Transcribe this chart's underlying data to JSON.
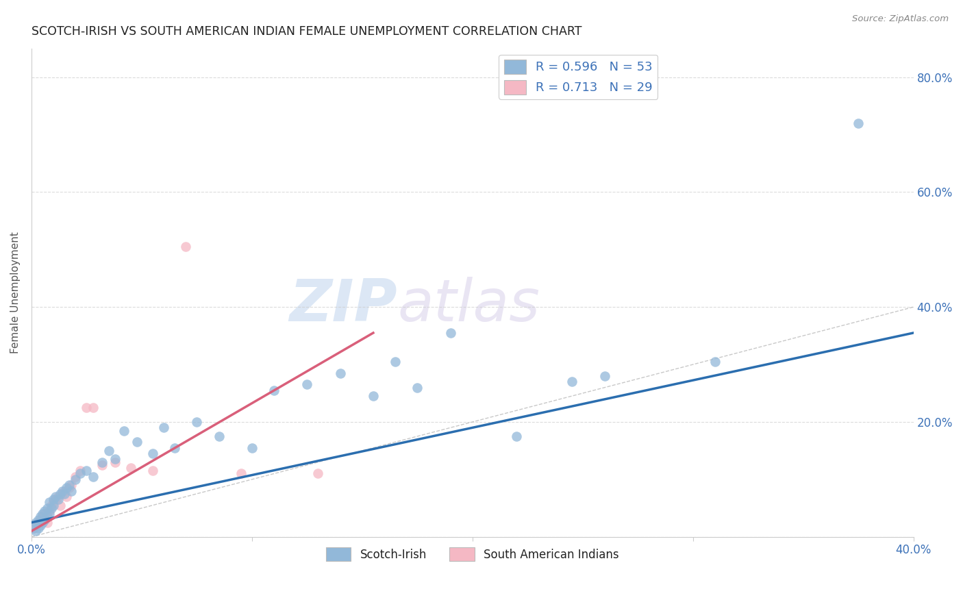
{
  "title": "SCOTCH-IRISH VS SOUTH AMERICAN INDIAN FEMALE UNEMPLOYMENT CORRELATION CHART",
  "source": "Source: ZipAtlas.com",
  "ylabel": "Female Unemployment",
  "xlim": [
    0.0,
    0.4
  ],
  "ylim": [
    0.0,
    0.85
  ],
  "x_ticks": [
    0.0,
    0.1,
    0.2,
    0.3,
    0.4
  ],
  "y_ticks": [
    0.0,
    0.2,
    0.4,
    0.6,
    0.8
  ],
  "x_tick_labels": [
    "0.0%",
    "",
    "",
    "",
    "40.0%"
  ],
  "y_tick_labels_right": [
    "",
    "20.0%",
    "40.0%",
    "60.0%",
    "80.0%"
  ],
  "legend_bottom_label1": "Scotch-Irish",
  "legend_bottom_label2": "South American Indians",
  "scotch_irish_color": "#92b8d9",
  "south_american_color": "#f5b8c4",
  "scotch_irish_line_color": "#2b6eaf",
  "south_american_line_color": "#d95f7a",
  "diagonal_line_color": "#bbbbbb",
  "R_scotch": 0.596,
  "N_scotch": 53,
  "R_south": 0.713,
  "N_south": 29,
  "scotch_x": [
    0.001,
    0.002,
    0.002,
    0.003,
    0.003,
    0.004,
    0.004,
    0.005,
    0.005,
    0.006,
    0.006,
    0.007,
    0.007,
    0.008,
    0.008,
    0.009,
    0.01,
    0.01,
    0.011,
    0.012,
    0.013,
    0.014,
    0.015,
    0.016,
    0.017,
    0.018,
    0.02,
    0.022,
    0.025,
    0.028,
    0.032,
    0.035,
    0.038,
    0.042,
    0.048,
    0.055,
    0.06,
    0.065,
    0.075,
    0.085,
    0.1,
    0.11,
    0.125,
    0.14,
    0.155,
    0.165,
    0.175,
    0.19,
    0.22,
    0.245,
    0.26,
    0.31,
    0.375
  ],
  "scotch_y": [
    0.015,
    0.01,
    0.025,
    0.015,
    0.03,
    0.02,
    0.035,
    0.025,
    0.04,
    0.03,
    0.045,
    0.035,
    0.05,
    0.04,
    0.06,
    0.05,
    0.065,
    0.055,
    0.07,
    0.065,
    0.075,
    0.08,
    0.075,
    0.085,
    0.09,
    0.08,
    0.1,
    0.11,
    0.115,
    0.105,
    0.13,
    0.15,
    0.135,
    0.185,
    0.165,
    0.145,
    0.19,
    0.155,
    0.2,
    0.175,
    0.155,
    0.255,
    0.265,
    0.285,
    0.245,
    0.305,
    0.26,
    0.355,
    0.175,
    0.27,
    0.28,
    0.305,
    0.72
  ],
  "south_x": [
    0.001,
    0.002,
    0.003,
    0.004,
    0.005,
    0.006,
    0.007,
    0.008,
    0.009,
    0.01,
    0.011,
    0.012,
    0.013,
    0.014,
    0.015,
    0.016,
    0.017,
    0.018,
    0.02,
    0.022,
    0.025,
    0.028,
    0.032,
    0.038,
    0.045,
    0.055,
    0.07,
    0.095,
    0.13
  ],
  "south_y": [
    0.015,
    0.02,
    0.025,
    0.03,
    0.035,
    0.04,
    0.025,
    0.045,
    0.055,
    0.06,
    0.065,
    0.07,
    0.055,
    0.075,
    0.08,
    0.07,
    0.085,
    0.09,
    0.105,
    0.115,
    0.225,
    0.225,
    0.125,
    0.13,
    0.12,
    0.115,
    0.505,
    0.11,
    0.11
  ],
  "blue_line_x": [
    0.0,
    0.4
  ],
  "blue_line_y": [
    0.025,
    0.355
  ],
  "pink_line_x": [
    0.0,
    0.155
  ],
  "pink_line_y": [
    0.01,
    0.355
  ],
  "watermark_zip": "ZIP",
  "watermark_atlas": "atlas",
  "background_color": "#ffffff",
  "grid_color": "#cccccc"
}
